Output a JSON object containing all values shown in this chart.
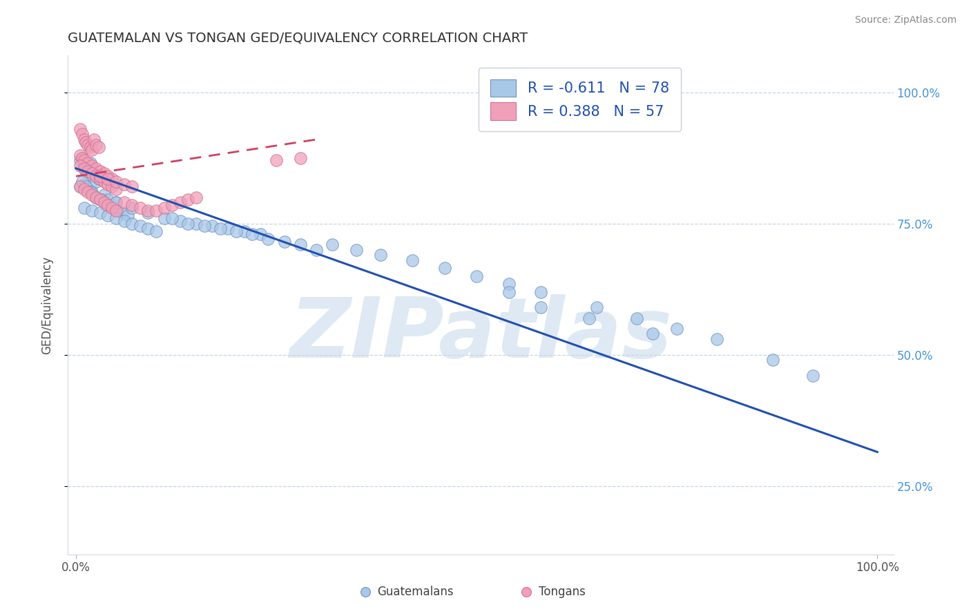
{
  "title": "GUATEMALAN VS TONGAN GED/EQUIVALENCY CORRELATION CHART",
  "source": "Source: ZipAtlas.com",
  "ylabel": "GED/Equivalency",
  "xlim": [
    -0.01,
    1.02
  ],
  "ylim": [
    0.12,
    1.07
  ],
  "yticks": [
    0.25,
    0.5,
    0.75,
    1.0
  ],
  "ytick_labels": [
    "25.0%",
    "50.0%",
    "75.0%",
    "100.0%"
  ],
  "xtick_labels": [
    "0.0%",
    "100.0%"
  ],
  "blue_R": -0.611,
  "blue_N": 78,
  "pink_R": 0.388,
  "pink_N": 57,
  "blue_color": "#a8c8e8",
  "pink_color": "#f0a0b8",
  "blue_edge_color": "#7090c0",
  "pink_edge_color": "#d07090",
  "blue_line_color": "#2050b0",
  "pink_line_color": "#d04060",
  "watermark": "ZIPatlas",
  "legend_label_blue": "Guatemalans",
  "legend_label_pink": "Tongans",
  "title_color": "#303030",
  "blue_x": [
    0.005,
    0.008,
    0.01,
    0.012,
    0.015,
    0.018,
    0.02,
    0.022,
    0.025,
    0.028,
    0.005,
    0.01,
    0.015,
    0.02,
    0.025,
    0.03,
    0.035,
    0.04,
    0.045,
    0.05,
    0.008,
    0.012,
    0.018,
    0.025,
    0.032,
    0.038,
    0.045,
    0.052,
    0.058,
    0.065,
    0.01,
    0.02,
    0.03,
    0.04,
    0.05,
    0.06,
    0.07,
    0.08,
    0.09,
    0.1,
    0.05,
    0.07,
    0.09,
    0.11,
    0.13,
    0.15,
    0.17,
    0.19,
    0.21,
    0.23,
    0.12,
    0.14,
    0.16,
    0.18,
    0.2,
    0.22,
    0.24,
    0.26,
    0.28,
    0.3,
    0.32,
    0.35,
    0.38,
    0.42,
    0.46,
    0.5,
    0.54,
    0.58,
    0.65,
    0.7,
    0.75,
    0.8,
    0.87,
    0.92,
    0.58,
    0.64,
    0.72,
    0.54
  ],
  "blue_y": [
    0.87,
    0.875,
    0.86,
    0.85,
    0.855,
    0.865,
    0.84,
    0.845,
    0.83,
    0.835,
    0.82,
    0.825,
    0.815,
    0.81,
    0.8,
    0.795,
    0.805,
    0.795,
    0.785,
    0.79,
    0.83,
    0.82,
    0.81,
    0.8,
    0.795,
    0.785,
    0.78,
    0.775,
    0.77,
    0.765,
    0.78,
    0.775,
    0.77,
    0.765,
    0.76,
    0.755,
    0.75,
    0.745,
    0.74,
    0.735,
    0.79,
    0.78,
    0.77,
    0.76,
    0.755,
    0.75,
    0.745,
    0.74,
    0.735,
    0.73,
    0.76,
    0.75,
    0.745,
    0.74,
    0.735,
    0.73,
    0.72,
    0.715,
    0.71,
    0.7,
    0.71,
    0.7,
    0.69,
    0.68,
    0.665,
    0.65,
    0.635,
    0.62,
    0.59,
    0.57,
    0.55,
    0.53,
    0.49,
    0.46,
    0.59,
    0.57,
    0.54,
    0.62
  ],
  "pink_x": [
    0.005,
    0.008,
    0.01,
    0.012,
    0.015,
    0.018,
    0.02,
    0.022,
    0.025,
    0.028,
    0.005,
    0.008,
    0.01,
    0.015,
    0.02,
    0.025,
    0.03,
    0.035,
    0.04,
    0.045,
    0.005,
    0.01,
    0.015,
    0.02,
    0.025,
    0.03,
    0.035,
    0.04,
    0.045,
    0.05,
    0.005,
    0.01,
    0.015,
    0.02,
    0.025,
    0.03,
    0.035,
    0.04,
    0.045,
    0.05,
    0.06,
    0.07,
    0.08,
    0.09,
    0.1,
    0.11,
    0.12,
    0.13,
    0.14,
    0.15,
    0.03,
    0.04,
    0.05,
    0.06,
    0.07,
    0.25,
    0.28
  ],
  "pink_y": [
    0.93,
    0.92,
    0.91,
    0.905,
    0.9,
    0.895,
    0.89,
    0.91,
    0.9,
    0.895,
    0.88,
    0.875,
    0.87,
    0.865,
    0.86,
    0.855,
    0.85,
    0.845,
    0.84,
    0.835,
    0.86,
    0.855,
    0.85,
    0.845,
    0.84,
    0.835,
    0.83,
    0.825,
    0.82,
    0.815,
    0.82,
    0.815,
    0.81,
    0.805,
    0.8,
    0.795,
    0.79,
    0.785,
    0.78,
    0.775,
    0.79,
    0.785,
    0.78,
    0.775,
    0.775,
    0.78,
    0.785,
    0.79,
    0.795,
    0.8,
    0.84,
    0.835,
    0.83,
    0.825,
    0.82,
    0.87,
    0.875
  ],
  "blue_trend_x": [
    0.0,
    1.0
  ],
  "blue_trend_y": [
    0.855,
    0.315
  ],
  "pink_trend_x": [
    0.0,
    0.3
  ],
  "pink_trend_y": [
    0.84,
    0.91
  ]
}
